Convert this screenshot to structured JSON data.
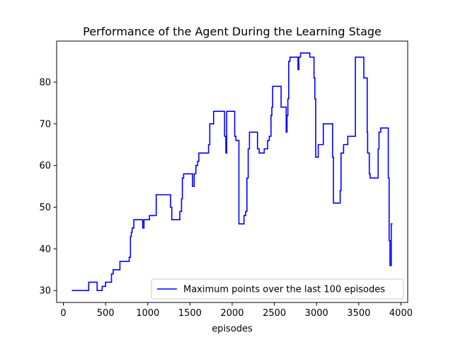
{
  "chart_data": {
    "type": "line",
    "title": "Performance of the Agent During the Learning Stage",
    "xlabel": "episodes",
    "ylabel": "",
    "xlim": [
      -80,
      4080
    ],
    "ylim": [
      27.15,
      89.85
    ],
    "xticks": [
      0,
      500,
      1000,
      1500,
      2000,
      2500,
      3000,
      3500,
      4000
    ],
    "yticks": [
      30,
      40,
      50,
      60,
      70,
      80
    ],
    "grid": false,
    "legend_position": "lower-right",
    "series": [
      {
        "name": "Maximum points over the last 100 episodes",
        "color": "#0000ff",
        "step": true,
        "points": [
          [
            100,
            30
          ],
          [
            300,
            30
          ],
          [
            300,
            32
          ],
          [
            400,
            32
          ],
          [
            400,
            30
          ],
          [
            460,
            30
          ],
          [
            460,
            31
          ],
          [
            500,
            31
          ],
          [
            500,
            32
          ],
          [
            570,
            32
          ],
          [
            570,
            34
          ],
          [
            590,
            34
          ],
          [
            590,
            35
          ],
          [
            670,
            35
          ],
          [
            670,
            37
          ],
          [
            780,
            37
          ],
          [
            780,
            38
          ],
          [
            795,
            38
          ],
          [
            795,
            43
          ],
          [
            805,
            43
          ],
          [
            805,
            44
          ],
          [
            815,
            44
          ],
          [
            815,
            45
          ],
          [
            835,
            45
          ],
          [
            835,
            47
          ],
          [
            940,
            47
          ],
          [
            940,
            45
          ],
          [
            955,
            45
          ],
          [
            955,
            47
          ],
          [
            1020,
            47
          ],
          [
            1020,
            48
          ],
          [
            1100,
            48
          ],
          [
            1100,
            53
          ],
          [
            1270,
            53
          ],
          [
            1270,
            50
          ],
          [
            1285,
            50
          ],
          [
            1285,
            47
          ],
          [
            1380,
            47
          ],
          [
            1380,
            49
          ],
          [
            1400,
            49
          ],
          [
            1400,
            52
          ],
          [
            1410,
            52
          ],
          [
            1410,
            57
          ],
          [
            1425,
            57
          ],
          [
            1425,
            58
          ],
          [
            1530,
            58
          ],
          [
            1530,
            55
          ],
          [
            1550,
            55
          ],
          [
            1550,
            58
          ],
          [
            1570,
            58
          ],
          [
            1570,
            60
          ],
          [
            1590,
            60
          ],
          [
            1590,
            61
          ],
          [
            1605,
            61
          ],
          [
            1605,
            63
          ],
          [
            1720,
            63
          ],
          [
            1720,
            65
          ],
          [
            1735,
            65
          ],
          [
            1735,
            70
          ],
          [
            1780,
            70
          ],
          [
            1780,
            73
          ],
          [
            1910,
            73
          ],
          [
            1910,
            67
          ],
          [
            1925,
            67
          ],
          [
            1925,
            63
          ],
          [
            1935,
            63
          ],
          [
            1935,
            73
          ],
          [
            2030,
            73
          ],
          [
            2030,
            67
          ],
          [
            2045,
            67
          ],
          [
            2045,
            66
          ],
          [
            2080,
            66
          ],
          [
            2080,
            46
          ],
          [
            2140,
            46
          ],
          [
            2140,
            48
          ],
          [
            2160,
            48
          ],
          [
            2160,
            49
          ],
          [
            2175,
            49
          ],
          [
            2175,
            57
          ],
          [
            2190,
            57
          ],
          [
            2190,
            64
          ],
          [
            2205,
            64
          ],
          [
            2205,
            68
          ],
          [
            2300,
            68
          ],
          [
            2300,
            64
          ],
          [
            2320,
            64
          ],
          [
            2320,
            63
          ],
          [
            2380,
            63
          ],
          [
            2380,
            64
          ],
          [
            2420,
            64
          ],
          [
            2420,
            66
          ],
          [
            2440,
            66
          ],
          [
            2440,
            67
          ],
          [
            2460,
            67
          ],
          [
            2460,
            72
          ],
          [
            2470,
            72
          ],
          [
            2470,
            74
          ],
          [
            2480,
            74
          ],
          [
            2480,
            79
          ],
          [
            2580,
            79
          ],
          [
            2580,
            74
          ],
          [
            2640,
            74
          ],
          [
            2640,
            68
          ],
          [
            2650,
            68
          ],
          [
            2650,
            72
          ],
          [
            2660,
            72
          ],
          [
            2660,
            76
          ],
          [
            2670,
            76
          ],
          [
            2670,
            85
          ],
          [
            2685,
            85
          ],
          [
            2685,
            86
          ],
          [
            2780,
            86
          ],
          [
            2780,
            83
          ],
          [
            2790,
            83
          ],
          [
            2790,
            86
          ],
          [
            2810,
            86
          ],
          [
            2810,
            87
          ],
          [
            2920,
            87
          ],
          [
            2920,
            86
          ],
          [
            2970,
            86
          ],
          [
            2970,
            81
          ],
          [
            2980,
            81
          ],
          [
            2980,
            76
          ],
          [
            2990,
            76
          ],
          [
            2990,
            62
          ],
          [
            3020,
            62
          ],
          [
            3020,
            65
          ],
          [
            3080,
            65
          ],
          [
            3080,
            70
          ],
          [
            3190,
            70
          ],
          [
            3190,
            62
          ],
          [
            3200,
            62
          ],
          [
            3200,
            51
          ],
          [
            3280,
            51
          ],
          [
            3280,
            54
          ],
          [
            3290,
            54
          ],
          [
            3290,
            63
          ],
          [
            3320,
            63
          ],
          [
            3320,
            65
          ],
          [
            3370,
            65
          ],
          [
            3370,
            67
          ],
          [
            3460,
            67
          ],
          [
            3460,
            86
          ],
          [
            3560,
            86
          ],
          [
            3560,
            81
          ],
          [
            3600,
            81
          ],
          [
            3600,
            68
          ],
          [
            3605,
            68
          ],
          [
            3605,
            63
          ],
          [
            3625,
            63
          ],
          [
            3625,
            58
          ],
          [
            3635,
            58
          ],
          [
            3635,
            57
          ],
          [
            3730,
            57
          ],
          [
            3730,
            64
          ],
          [
            3740,
            64
          ],
          [
            3740,
            68
          ],
          [
            3760,
            68
          ],
          [
            3760,
            69
          ],
          [
            3850,
            69
          ],
          [
            3850,
            57
          ],
          [
            3860,
            57
          ],
          [
            3860,
            42
          ],
          [
            3870,
            42
          ],
          [
            3870,
            36
          ],
          [
            3885,
            36
          ],
          [
            3885,
            46
          ],
          [
            3900,
            46
          ]
        ]
      }
    ]
  }
}
